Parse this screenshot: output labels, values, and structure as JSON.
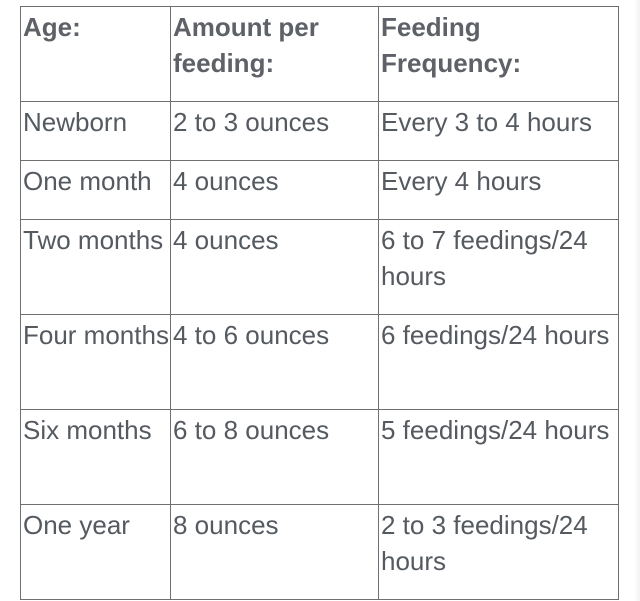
{
  "table": {
    "headers": [
      "Age:",
      "Amount per feeding:",
      "Feeding Frequency:"
    ],
    "rows": [
      {
        "age": "Newborn",
        "amount": "2 to 3 ounces",
        "frequency": "Every 3 to 4 hours"
      },
      {
        "age": "One month",
        "amount": "4 ounces",
        "frequency": "Every 4 hours"
      },
      {
        "age": "Two months",
        "amount": "4 ounces",
        "frequency": "6 to 7 feedings/24 hours"
      },
      {
        "age": "Four months",
        "amount": "4 to 6 ounces",
        "frequency": "6 feedings/24 hours"
      },
      {
        "age": "Six months",
        "amount": "6 to 8 ounces",
        "frequency": "5 feedings/24 hours"
      },
      {
        "age": "One year",
        "amount": "8 ounces",
        "frequency": "2 to 3 feedings/24 hours"
      }
    ]
  },
  "colors": {
    "text": "#555a60",
    "border": "#6f6f6f",
    "background": "#ffffff"
  }
}
